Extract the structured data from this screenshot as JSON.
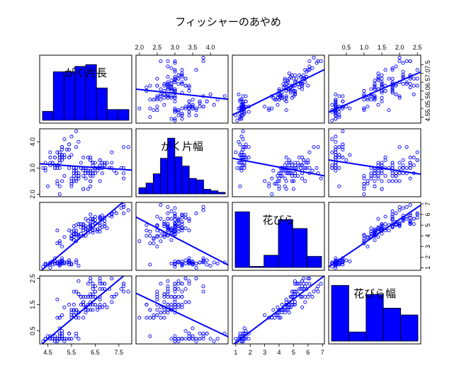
{
  "chart_data": {
    "type": "scatter",
    "title": "フィッシャーのあやめ",
    "variables": [
      "がく片長",
      "がく片幅",
      "花びら",
      "花びら幅"
    ],
    "ranges": [
      [
        4.3,
        7.9
      ],
      [
        2.0,
        4.4
      ],
      [
        1.0,
        6.9
      ],
      [
        0.1,
        2.5
      ]
    ],
    "ticks": [
      [
        "4.5",
        "5.5",
        "6.5",
        "7.5"
      ],
      [
        "2.0",
        "3.0",
        "4.0"
      ],
      [
        "1",
        "2",
        "3",
        "4",
        "5",
        "6",
        "7"
      ],
      [
        "0.5",
        "1.5",
        "2.5"
      ]
    ],
    "top_ticks": [
      [],
      [
        "2.0",
        "2.5",
        "3.0",
        "3.5",
        "4.0"
      ],
      [],
      [
        "0.5",
        "1.0",
        "1.5",
        "2.0",
        "2.5"
      ]
    ],
    "right_ticks": [
      [
        "4.5",
        "5.0",
        "5.5",
        "6.0",
        "6.5",
        "7.0",
        "7.5"
      ],
      [],
      [
        "1",
        "2",
        "3",
        "4",
        "5",
        "6",
        "7"
      ],
      []
    ],
    "lower_panels": "scatter with least-squares regression line",
    "upper_panels": "scatter with least-squares regression line",
    "diagonal_panels": "histogram",
    "point_color": "#0000ff",
    "line_color": "#0000ff",
    "bar_fill": "#0000ff",
    "histograms": [
      {
        "breaks": [
          4.0,
          4.5,
          5.0,
          5.5,
          6.0,
          6.5,
          7.0,
          7.5,
          8.0
        ],
        "counts": [
          5,
          27,
          27,
          30,
          31,
          18,
          6,
          6
        ]
      },
      {
        "breaks": [
          2.0,
          2.2,
          2.4,
          2.6,
          2.8,
          3.0,
          3.2,
          3.4,
          3.6,
          3.8,
          4.0,
          4.2,
          4.4
        ],
        "counts": [
          4,
          7,
          13,
          23,
          36,
          24,
          18,
          10,
          9,
          3,
          2,
          1
        ]
      },
      {
        "breaks": [
          1,
          2,
          3,
          4,
          5,
          6,
          7
        ],
        "counts": [
          50,
          1,
          11,
          43,
          35,
          10
        ]
      },
      {
        "breaks": [
          0.0,
          0.5,
          1.0,
          1.5,
          2.0,
          2.5
        ],
        "counts": [
          49,
          8,
          41,
          29,
          23
        ]
      }
    ],
    "data": [
      [
        5.1,
        3.5,
        1.4,
        0.2
      ],
      [
        4.9,
        3.0,
        1.4,
        0.2
      ],
      [
        4.7,
        3.2,
        1.3,
        0.2
      ],
      [
        4.6,
        3.1,
        1.5,
        0.2
      ],
      [
        5.0,
        3.6,
        1.4,
        0.2
      ],
      [
        5.4,
        3.9,
        1.7,
        0.4
      ],
      [
        4.6,
        3.4,
        1.4,
        0.3
      ],
      [
        5.0,
        3.4,
        1.5,
        0.2
      ],
      [
        4.4,
        2.9,
        1.4,
        0.2
      ],
      [
        4.9,
        3.1,
        1.5,
        0.1
      ],
      [
        5.4,
        3.7,
        1.5,
        0.2
      ],
      [
        4.8,
        3.4,
        1.6,
        0.2
      ],
      [
        4.8,
        3.0,
        1.4,
        0.1
      ],
      [
        4.3,
        3.0,
        1.1,
        0.1
      ],
      [
        5.8,
        4.0,
        1.2,
        0.2
      ],
      [
        5.7,
        4.4,
        1.5,
        0.4
      ],
      [
        5.4,
        3.9,
        1.3,
        0.4
      ],
      [
        5.1,
        3.5,
        1.4,
        0.3
      ],
      [
        5.7,
        3.8,
        1.7,
        0.3
      ],
      [
        5.1,
        3.8,
        1.5,
        0.3
      ],
      [
        5.4,
        3.4,
        1.7,
        0.2
      ],
      [
        5.1,
        3.7,
        1.5,
        0.4
      ],
      [
        4.6,
        3.6,
        1.0,
        0.2
      ],
      [
        5.1,
        3.3,
        1.7,
        0.5
      ],
      [
        4.8,
        3.4,
        1.9,
        0.2
      ],
      [
        5.0,
        3.0,
        1.6,
        0.2
      ],
      [
        5.0,
        3.4,
        1.6,
        0.4
      ],
      [
        5.2,
        3.5,
        1.5,
        0.2
      ],
      [
        5.2,
        3.4,
        1.4,
        0.2
      ],
      [
        4.7,
        3.2,
        1.6,
        0.2
      ],
      [
        4.8,
        3.1,
        1.6,
        0.2
      ],
      [
        5.4,
        3.4,
        1.5,
        0.4
      ],
      [
        5.2,
        4.1,
        1.5,
        0.1
      ],
      [
        5.5,
        4.2,
        1.4,
        0.2
      ],
      [
        4.9,
        3.1,
        1.5,
        0.2
      ],
      [
        5.0,
        3.2,
        1.2,
        0.2
      ],
      [
        5.5,
        3.5,
        1.3,
        0.2
      ],
      [
        4.9,
        3.6,
        1.4,
        0.1
      ],
      [
        4.4,
        3.0,
        1.3,
        0.2
      ],
      [
        5.1,
        3.4,
        1.5,
        0.2
      ],
      [
        5.0,
        3.5,
        1.3,
        0.3
      ],
      [
        4.5,
        2.3,
        1.3,
        0.3
      ],
      [
        4.4,
        3.2,
        1.3,
        0.2
      ],
      [
        5.0,
        3.5,
        1.6,
        0.6
      ],
      [
        5.1,
        3.8,
        1.9,
        0.4
      ],
      [
        4.8,
        3.0,
        1.4,
        0.3
      ],
      [
        5.1,
        3.8,
        1.6,
        0.2
      ],
      [
        4.6,
        3.2,
        1.4,
        0.2
      ],
      [
        5.3,
        3.7,
        1.5,
        0.2
      ],
      [
        5.0,
        3.3,
        1.4,
        0.2
      ],
      [
        7.0,
        3.2,
        4.7,
        1.4
      ],
      [
        6.4,
        3.2,
        4.5,
        1.5
      ],
      [
        6.9,
        3.1,
        4.9,
        1.5
      ],
      [
        5.5,
        2.3,
        4.0,
        1.3
      ],
      [
        6.5,
        2.8,
        4.6,
        1.5
      ],
      [
        5.7,
        2.8,
        4.5,
        1.3
      ],
      [
        6.3,
        3.3,
        4.7,
        1.6
      ],
      [
        4.9,
        2.4,
        3.3,
        1.0
      ],
      [
        6.6,
        2.9,
        4.6,
        1.3
      ],
      [
        5.2,
        2.7,
        3.9,
        1.4
      ],
      [
        5.0,
        2.0,
        3.5,
        1.0
      ],
      [
        5.9,
        3.0,
        4.2,
        1.5
      ],
      [
        6.0,
        2.2,
        4.0,
        1.0
      ],
      [
        6.1,
        2.9,
        4.7,
        1.4
      ],
      [
        5.6,
        2.9,
        3.6,
        1.3
      ],
      [
        6.7,
        3.1,
        4.4,
        1.4
      ],
      [
        5.6,
        3.0,
        4.5,
        1.5
      ],
      [
        5.8,
        2.7,
        4.1,
        1.0
      ],
      [
        6.2,
        2.2,
        4.5,
        1.5
      ],
      [
        5.6,
        2.5,
        3.9,
        1.1
      ],
      [
        5.9,
        3.2,
        4.8,
        1.8
      ],
      [
        6.1,
        2.8,
        4.0,
        1.3
      ],
      [
        6.3,
        2.5,
        4.9,
        1.5
      ],
      [
        6.1,
        2.8,
        4.7,
        1.2
      ],
      [
        6.4,
        2.9,
        4.3,
        1.3
      ],
      [
        6.6,
        3.0,
        4.4,
        1.4
      ],
      [
        6.8,
        2.8,
        4.8,
        1.4
      ],
      [
        6.7,
        3.0,
        5.0,
        1.7
      ],
      [
        6.0,
        2.9,
        4.5,
        1.5
      ],
      [
        5.7,
        2.6,
        3.5,
        1.0
      ],
      [
        5.5,
        2.4,
        3.8,
        1.1
      ],
      [
        5.5,
        2.4,
        3.7,
        1.0
      ],
      [
        5.8,
        2.7,
        3.9,
        1.2
      ],
      [
        6.0,
        2.7,
        5.1,
        1.6
      ],
      [
        5.4,
        3.0,
        4.5,
        1.5
      ],
      [
        6.0,
        3.4,
        4.5,
        1.6
      ],
      [
        6.7,
        3.1,
        4.7,
        1.5
      ],
      [
        6.3,
        2.3,
        4.4,
        1.3
      ],
      [
        5.6,
        3.0,
        4.1,
        1.3
      ],
      [
        5.5,
        2.5,
        4.0,
        1.3
      ],
      [
        5.5,
        2.6,
        4.4,
        1.2
      ],
      [
        6.1,
        3.0,
        4.6,
        1.4
      ],
      [
        5.8,
        2.6,
        4.0,
        1.2
      ],
      [
        5.0,
        2.3,
        3.3,
        1.0
      ],
      [
        5.6,
        2.7,
        4.2,
        1.3
      ],
      [
        5.7,
        3.0,
        4.2,
        1.2
      ],
      [
        5.7,
        2.9,
        4.2,
        1.3
      ],
      [
        6.2,
        2.9,
        4.3,
        1.3
      ],
      [
        5.1,
        2.5,
        3.0,
        1.1
      ],
      [
        5.7,
        2.8,
        4.1,
        1.3
      ],
      [
        6.3,
        3.3,
        6.0,
        2.5
      ],
      [
        5.8,
        2.7,
        5.1,
        1.9
      ],
      [
        7.1,
        3.0,
        5.9,
        2.1
      ],
      [
        6.3,
        2.9,
        5.6,
        1.8
      ],
      [
        6.5,
        3.0,
        5.8,
        2.2
      ],
      [
        7.6,
        3.0,
        6.6,
        2.1
      ],
      [
        4.9,
        2.5,
        4.5,
        1.7
      ],
      [
        7.3,
        2.9,
        6.3,
        1.8
      ],
      [
        6.7,
        2.5,
        5.8,
        1.8
      ],
      [
        7.2,
        3.6,
        6.1,
        2.5
      ],
      [
        6.5,
        3.2,
        5.1,
        2.0
      ],
      [
        6.4,
        2.7,
        5.3,
        1.9
      ],
      [
        6.8,
        3.0,
        5.5,
        2.1
      ],
      [
        5.7,
        2.5,
        5.0,
        2.0
      ],
      [
        5.8,
        2.8,
        5.1,
        2.4
      ],
      [
        6.4,
        3.2,
        5.3,
        2.3
      ],
      [
        6.5,
        3.0,
        5.5,
        1.8
      ],
      [
        7.7,
        3.8,
        6.7,
        2.2
      ],
      [
        7.7,
        2.6,
        6.9,
        2.3
      ],
      [
        6.0,
        2.2,
        5.0,
        1.5
      ],
      [
        6.9,
        3.2,
        5.7,
        2.3
      ],
      [
        5.6,
        2.8,
        4.9,
        2.0
      ],
      [
        7.7,
        2.8,
        6.7,
        2.0
      ],
      [
        6.3,
        2.7,
        4.9,
        1.8
      ],
      [
        6.7,
        3.3,
        5.7,
        2.1
      ],
      [
        7.2,
        3.2,
        6.0,
        1.8
      ],
      [
        6.2,
        2.8,
        4.8,
        1.8
      ],
      [
        6.1,
        3.0,
        4.9,
        1.8
      ],
      [
        6.4,
        2.8,
        5.6,
        2.1
      ],
      [
        7.2,
        3.0,
        5.8,
        1.6
      ],
      [
        7.4,
        2.8,
        6.1,
        1.9
      ],
      [
        7.9,
        3.8,
        6.4,
        2.0
      ],
      [
        6.4,
        2.8,
        5.6,
        2.2
      ],
      [
        6.3,
        2.8,
        5.1,
        1.5
      ],
      [
        6.1,
        2.6,
        5.6,
        1.4
      ],
      [
        7.7,
        3.0,
        6.1,
        2.3
      ],
      [
        6.3,
        3.4,
        5.6,
        2.4
      ],
      [
        6.4,
        3.1,
        5.5,
        1.8
      ],
      [
        6.0,
        3.0,
        4.8,
        1.8
      ],
      [
        6.9,
        3.1,
        5.4,
        2.1
      ],
      [
        6.7,
        3.1,
        5.6,
        2.4
      ],
      [
        6.9,
        3.1,
        5.1,
        2.3
      ],
      [
        5.8,
        2.7,
        5.1,
        1.9
      ],
      [
        6.8,
        3.2,
        5.9,
        2.3
      ],
      [
        6.7,
        3.3,
        5.7,
        2.5
      ],
      [
        6.7,
        3.0,
        5.2,
        2.3
      ],
      [
        6.3,
        2.5,
        5.0,
        1.9
      ],
      [
        6.5,
        3.0,
        5.2,
        2.0
      ],
      [
        6.2,
        3.4,
        5.4,
        2.3
      ],
      [
        5.9,
        3.0,
        5.1,
        1.8
      ]
    ]
  }
}
